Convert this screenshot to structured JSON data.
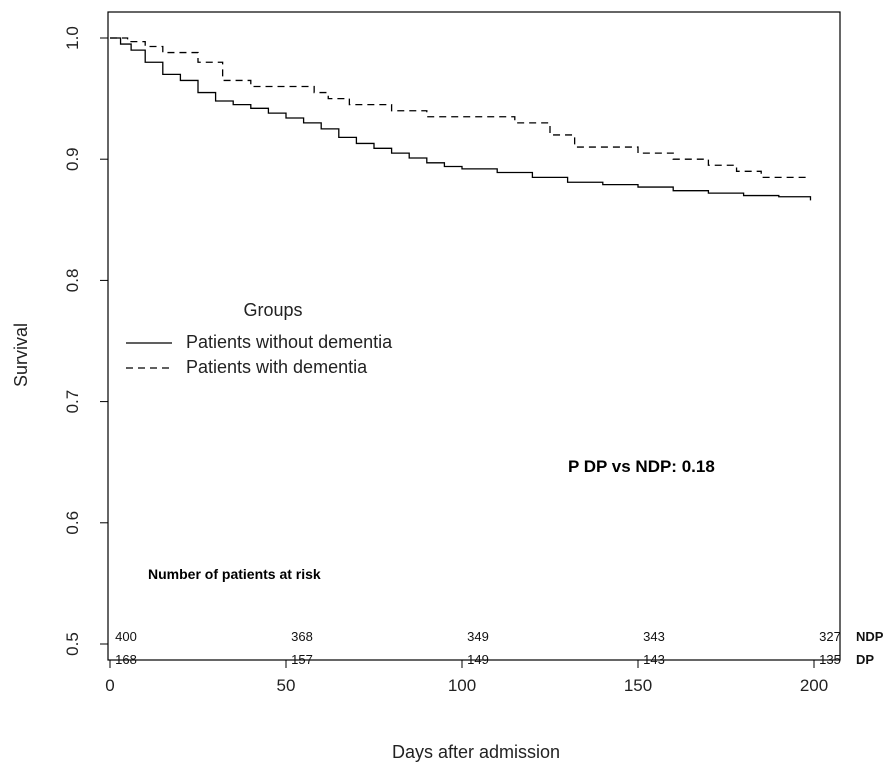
{
  "chart_data": {
    "type": "line",
    "subtype": "kaplan-meier-step",
    "title": "",
    "xlabel": "Days after admission",
    "ylabel": "Survival",
    "xlim": [
      0,
      200
    ],
    "ylim": [
      0.5,
      1.0
    ],
    "x_ticks": [
      "0",
      "50",
      "100",
      "150",
      "200"
    ],
    "y_ticks": [
      "0.5",
      "0.6",
      "0.7",
      "0.8",
      "0.9",
      "1.0"
    ],
    "grid": false,
    "legend": {
      "title": "Groups",
      "position": "center-left",
      "entries": [
        {
          "label": "Patients without dementia",
          "style": "solid"
        },
        {
          "label": "Patients with dementia",
          "style": "dashed"
        }
      ]
    },
    "annotation": "P DP vs NDP: 0.18",
    "series": [
      {
        "name": "Patients without dementia",
        "style": "solid",
        "color": "#000000",
        "x": [
          0,
          3,
          6,
          10,
          15,
          20,
          25,
          30,
          35,
          40,
          45,
          50,
          55,
          60,
          65,
          70,
          75,
          80,
          85,
          90,
          95,
          100,
          110,
          120,
          130,
          140,
          150,
          160,
          170,
          180,
          190,
          199
        ],
        "y": [
          1.0,
          0.995,
          0.99,
          0.98,
          0.97,
          0.965,
          0.955,
          0.948,
          0.945,
          0.942,
          0.938,
          0.934,
          0.93,
          0.925,
          0.918,
          0.913,
          0.909,
          0.905,
          0.901,
          0.897,
          0.894,
          0.892,
          0.889,
          0.885,
          0.881,
          0.879,
          0.877,
          0.874,
          0.872,
          0.87,
          0.869,
          0.866
        ]
      },
      {
        "name": "Patients with dementia",
        "style": "dashed",
        "color": "#000000",
        "x": [
          0,
          5,
          10,
          15,
          25,
          32,
          40,
          58,
          62,
          68,
          80,
          85,
          90,
          105,
          115,
          125,
          132,
          140,
          150,
          155,
          160,
          170,
          178,
          185,
          199
        ],
        "y": [
          1.0,
          0.997,
          0.993,
          0.988,
          0.98,
          0.965,
          0.96,
          0.955,
          0.95,
          0.945,
          0.94,
          0.94,
          0.935,
          0.935,
          0.93,
          0.92,
          0.91,
          0.91,
          0.905,
          0.905,
          0.9,
          0.895,
          0.89,
          0.885,
          0.885
        ]
      }
    ],
    "risk_table": {
      "title": "Number of patients at risk",
      "times": [
        0,
        50,
        100,
        150,
        200
      ],
      "rows": [
        {
          "group": "NDP",
          "counts": [
            "400",
            "368",
            "349",
            "343",
            "327"
          ]
        },
        {
          "group": "DP",
          "counts": [
            "168",
            "157",
            "149",
            "143",
            "135"
          ]
        }
      ]
    }
  }
}
